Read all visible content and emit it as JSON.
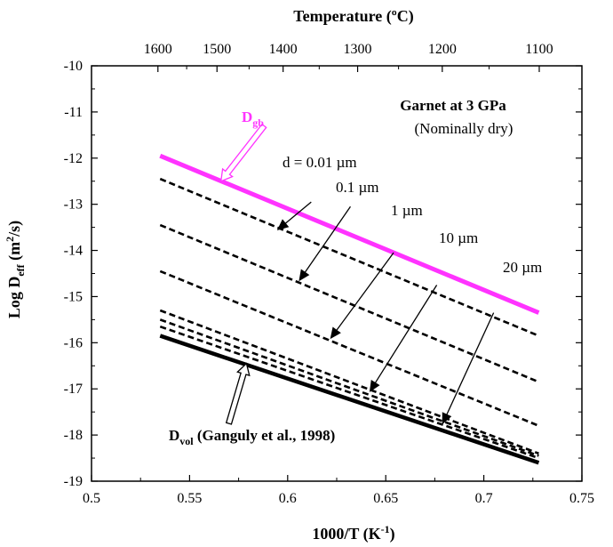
{
  "chart_data": {
    "type": "line",
    "title": "",
    "xlabel": "1000/T (K",
    "xlabel_sup": "-1",
    "xlabel_tail": ")",
    "ylabel_pre": "Log D",
    "ylabel_sub": "eff",
    "ylabel_mid": " (m",
    "ylabel_sup": "2",
    "ylabel_tail": "/s)",
    "top_axis_label": "Temperature (ºC)",
    "xlim": [
      0.5,
      0.75
    ],
    "ylim": [
      -19,
      -10
    ],
    "x_ticks": [
      "0.5",
      "0.55",
      "0.6",
      "0.65",
      "0.7",
      "0.75"
    ],
    "y_ticks": [
      "-10",
      "-11",
      "-12",
      "-13",
      "-14",
      "-15",
      "-16",
      "-17",
      "-18",
      "-19"
    ],
    "top_ticks": [
      {
        "label": "1600",
        "value": 1600
      },
      {
        "label": "1500",
        "value": 1500
      },
      {
        "label": "1400",
        "value": 1400
      },
      {
        "label": "1300",
        "value": 1300
      },
      {
        "label": "1200",
        "value": 1200
      },
      {
        "label": "1100",
        "value": 1100
      }
    ],
    "grid": false,
    "series": [
      {
        "name": "D_gb",
        "style": "solid",
        "color": "#ff33ff",
        "x": [
          0.535,
          0.728
        ],
        "y": [
          -11.95,
          -15.35
        ]
      },
      {
        "name": "d = 0.01 µm",
        "style": "dashed",
        "color": "#000000",
        "x": [
          0.535,
          0.728
        ],
        "y": [
          -12.45,
          -15.85
        ]
      },
      {
        "name": "0.1 µm",
        "style": "dashed",
        "color": "#000000",
        "x": [
          0.535,
          0.728
        ],
        "y": [
          -13.45,
          -16.85
        ]
      },
      {
        "name": "1 µm",
        "style": "dashed",
        "color": "#000000",
        "x": [
          0.535,
          0.728
        ],
        "y": [
          -14.45,
          -17.8
        ]
      },
      {
        "name": "10 µm",
        "style": "dashed",
        "color": "#000000",
        "x": [
          0.535,
          0.728
        ],
        "y": [
          -15.3,
          -18.4
        ]
      },
      {
        "name": "20 µm",
        "style": "dashed",
        "color": "#000000",
        "x": [
          0.535,
          0.728
        ],
        "y": [
          -15.5,
          -18.45
        ]
      },
      {
        "name": "",
        "style": "dashed",
        "color": "#000000",
        "x": [
          0.535,
          0.728
        ],
        "y": [
          -15.65,
          -18.5
        ]
      },
      {
        "name": "D_vol",
        "style": "solid-thick",
        "color": "#000000",
        "x": [
          0.535,
          0.728
        ],
        "y": [
          -15.85,
          -18.6
        ]
      }
    ],
    "annotations": {
      "title_line1": "Garnet at 3 GPa",
      "title_line2": "(Nominally dry)",
      "dgb_main": "D",
      "dgb_sub": "gb",
      "dvol_main": "D",
      "dvol_sub": "vol",
      "dvol_ref": " (Ganguly et al., 1998)",
      "d001": "d = 0.01 µm",
      "d01": "0.1 µm",
      "d1": "1 µm",
      "d10": "10 µm",
      "d20": "20 µm"
    },
    "arrows": [
      {
        "target": "d001",
        "from": [
          0.612,
          -12.95
        ],
        "to": [
          0.595,
          -13.55
        ]
      },
      {
        "target": "d01",
        "from": [
          0.632,
          -13.05
        ],
        "to": [
          0.606,
          -14.65
        ]
      },
      {
        "target": "d1",
        "from": [
          0.654,
          -14.05
        ],
        "to": [
          0.622,
          -15.9
        ]
      },
      {
        "target": "d10",
        "from": [
          0.676,
          -14.75
        ],
        "to": [
          0.642,
          -17.05
        ]
      },
      {
        "target": "d20",
        "from": [
          0.705,
          -15.35
        ],
        "to": [
          0.679,
          -17.75
        ]
      }
    ],
    "hollow_arrows": [
      {
        "target": "dgb",
        "from": [
          0.588,
          -11.3
        ],
        "to": [
          0.566,
          -12.5
        ]
      },
      {
        "target": "dvol",
        "from": [
          0.57,
          -17.75
        ],
        "to": [
          0.579,
          -16.45
        ]
      }
    ],
    "colors": {
      "dgb": "#ff33ff",
      "axis": "#000000"
    }
  }
}
